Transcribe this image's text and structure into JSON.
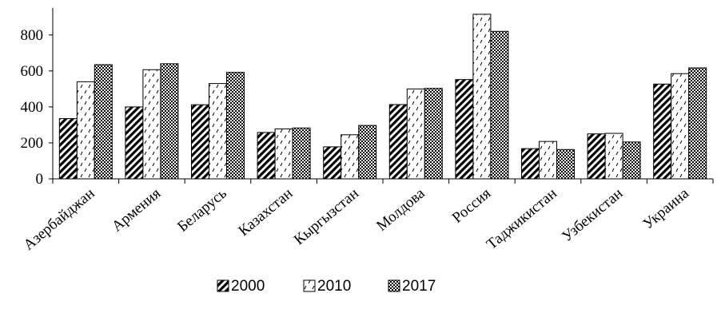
{
  "chart_data": {
    "type": "bar",
    "title": "",
    "xlabel": "",
    "ylabel": "",
    "ylim": [
      0,
      950
    ],
    "yticks": [
      0,
      200,
      400,
      600,
      800
    ],
    "grid": false,
    "legend_position": "bottom",
    "categories": [
      "Азербайджан",
      "Армения",
      "Беларусь",
      "Казахстан",
      "Кыргызстан",
      "Молдова",
      "Россия",
      "Таджикистан",
      "Узбекистан",
      "Украина"
    ],
    "series": [
      {
        "name": "2000",
        "pattern": "diagonal-hatch",
        "values": [
          335,
          400,
          412,
          258,
          178,
          413,
          552,
          168,
          250,
          527
        ]
      },
      {
        "name": "2010",
        "pattern": "dotted-diagonal",
        "values": [
          540,
          607,
          530,
          278,
          245,
          500,
          915,
          208,
          253,
          585
        ]
      },
      {
        "name": "2017",
        "pattern": "checkered",
        "values": [
          635,
          640,
          592,
          283,
          297,
          503,
          820,
          163,
          205,
          617
        ]
      }
    ]
  }
}
